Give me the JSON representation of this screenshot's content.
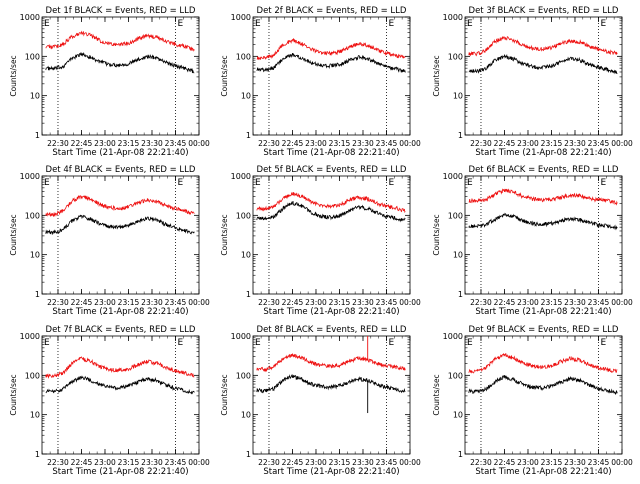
{
  "figure": {
    "description_kind": "3x3 grid of detector count-rate plots",
    "events_color": "#000000",
    "lld_color": "#ee1111",
    "frame_color": "#000000",
    "eclipse_marker": "E"
  },
  "chart_data": [
    {
      "type": "line",
      "title": "Det 1f BLACK = Events, RED = LLD",
      "ylabel": "Counts/sec",
      "xlabel": "Start Time (21-Apr-08 22:21:40)",
      "xlim": [
        22.33,
        24.0
      ],
      "ylim": [
        1,
        1000
      ],
      "yscale": "log",
      "xticks": [
        "22:30",
        "22:45",
        "23:00",
        "23:15",
        "23:30",
        "23:45",
        "00:00"
      ],
      "yticks": [
        "1",
        "10",
        "100",
        "1000"
      ],
      "vlines": [
        22.5,
        23.75
      ],
      "series": [
        {
          "name": "Events",
          "color": "#000000",
          "x": [
            22.37,
            22.45,
            22.55,
            22.65,
            22.75,
            22.85,
            22.95,
            23.05,
            23.15,
            23.25,
            23.35,
            23.45,
            23.55,
            23.65,
            23.75,
            23.85,
            23.95
          ],
          "values": [
            50,
            48,
            55,
            90,
            115,
            95,
            72,
            62,
            60,
            65,
            82,
            100,
            92,
            70,
            58,
            50,
            40
          ]
        },
        {
          "name": "LLD",
          "color": "#ee1111",
          "x": [
            22.37,
            22.45,
            22.55,
            22.65,
            22.75,
            22.85,
            22.95,
            23.05,
            23.15,
            23.25,
            23.35,
            23.45,
            23.55,
            23.65,
            23.75,
            23.85,
            23.95
          ],
          "values": [
            180,
            175,
            200,
            320,
            400,
            340,
            250,
            210,
            200,
            215,
            280,
            340,
            310,
            240,
            200,
            180,
            140
          ]
        }
      ]
    },
    {
      "type": "line",
      "title": "Det 2f BLACK = Events, RED = LLD",
      "ylabel": "Counts/sec",
      "xlabel": "Start Time (21-Apr-08 22:21:40)",
      "xlim": [
        22.33,
        24.0
      ],
      "ylim": [
        1,
        1000
      ],
      "yscale": "log",
      "xticks": [
        "22:30",
        "22:45",
        "23:00",
        "23:15",
        "23:30",
        "23:45",
        "00:00"
      ],
      "yticks": [
        "1",
        "10",
        "100",
        "1000"
      ],
      "vlines": [
        22.5,
        23.75
      ],
      "series": [
        {
          "name": "Events",
          "color": "#000000",
          "x": [
            22.37,
            22.45,
            22.55,
            22.65,
            22.75,
            22.85,
            22.95,
            23.05,
            23.15,
            23.25,
            23.35,
            23.45,
            23.55,
            23.65,
            23.75,
            23.85,
            23.95
          ],
          "values": [
            48,
            45,
            52,
            85,
            110,
            92,
            70,
            60,
            58,
            62,
            78,
            95,
            88,
            68,
            55,
            48,
            42
          ]
        },
        {
          "name": "LLD",
          "color": "#ee1111",
          "x": [
            22.37,
            22.45,
            22.55,
            22.65,
            22.75,
            22.85,
            22.95,
            23.05,
            23.15,
            23.25,
            23.35,
            23.45,
            23.55,
            23.65,
            23.75,
            23.85,
            23.95
          ],
          "values": [
            95,
            90,
            110,
            200,
            260,
            210,
            150,
            125,
            120,
            130,
            170,
            210,
            190,
            145,
            120,
            105,
            90
          ]
        }
      ]
    },
    {
      "type": "line",
      "title": "Det 3f BLACK = Events, RED = LLD",
      "ylabel": "Counts/sec",
      "xlabel": "Start Time (21-Apr-08 22:21:40)",
      "xlim": [
        22.33,
        24.0
      ],
      "ylim": [
        1,
        1000
      ],
      "yscale": "log",
      "xticks": [
        "22:30",
        "22:45",
        "23:00",
        "23:15",
        "23:30",
        "23:45",
        "00:00"
      ],
      "yticks": [
        "1",
        "10",
        "100",
        "1000"
      ],
      "vlines": [
        22.5,
        23.75
      ],
      "series": [
        {
          "name": "Events",
          "color": "#000000",
          "x": [
            22.37,
            22.45,
            22.55,
            22.65,
            22.75,
            22.85,
            22.95,
            23.05,
            23.15,
            23.25,
            23.35,
            23.45,
            23.55,
            23.65,
            23.75,
            23.85,
            23.95
          ],
          "values": [
            45,
            42,
            48,
            80,
            100,
            85,
            65,
            55,
            52,
            58,
            72,
            88,
            80,
            62,
            52,
            46,
            40
          ]
        },
        {
          "name": "LLD",
          "color": "#ee1111",
          "x": [
            22.37,
            22.45,
            22.55,
            22.65,
            22.75,
            22.85,
            22.95,
            23.05,
            23.15,
            23.25,
            23.35,
            23.45,
            23.55,
            23.65,
            23.75,
            23.85,
            23.95
          ],
          "values": [
            120,
            115,
            140,
            240,
            300,
            255,
            190,
            160,
            155,
            165,
            210,
            250,
            230,
            180,
            150,
            130,
            120
          ]
        }
      ]
    },
    {
      "type": "line",
      "title": "Det 4f BLACK = Events, RED = LLD",
      "ylabel": "Counts/sec",
      "xlabel": "Start Time (21-Apr-08 22:21:40)",
      "xlim": [
        22.33,
        24.0
      ],
      "ylim": [
        1,
        1000
      ],
      "yscale": "log",
      "xticks": [
        "22:30",
        "22:45",
        "23:00",
        "23:15",
        "23:30",
        "23:45",
        "00:00"
      ],
      "yticks": [
        "1",
        "10",
        "100",
        "1000"
      ],
      "vlines": [
        22.5,
        23.75
      ],
      "series": [
        {
          "name": "Events",
          "color": "#000000",
          "x": [
            22.37,
            22.45,
            22.55,
            22.65,
            22.75,
            22.85,
            22.95,
            23.05,
            23.15,
            23.25,
            23.35,
            23.45,
            23.55,
            23.65,
            23.75,
            23.85,
            23.95
          ],
          "values": [
            38,
            36,
            42,
            72,
            95,
            80,
            60,
            52,
            50,
            55,
            70,
            85,
            78,
            58,
            48,
            42,
            35
          ]
        },
        {
          "name": "LLD",
          "color": "#ee1111",
          "x": [
            22.37,
            22.45,
            22.55,
            22.65,
            22.75,
            22.85,
            22.95,
            23.05,
            23.15,
            23.25,
            23.35,
            23.45,
            23.55,
            23.65,
            23.75,
            23.85,
            23.95
          ],
          "values": [
            110,
            105,
            130,
            230,
            310,
            260,
            190,
            160,
            150,
            165,
            210,
            250,
            230,
            175,
            150,
            130,
            110
          ]
        }
      ]
    },
    {
      "type": "line",
      "title": "Det 5f BLACK = Events, RED = LLD",
      "ylabel": "Counts/sec",
      "xlabel": "Start Time (21-Apr-08 22:21:40)",
      "xlim": [
        22.33,
        24.0
      ],
      "ylim": [
        1,
        1000
      ],
      "yscale": "log",
      "xticks": [
        "22:30",
        "22:45",
        "23:00",
        "23:15",
        "23:30",
        "23:45",
        "00:00"
      ],
      "yticks": [
        "1",
        "10",
        "100",
        "1000"
      ],
      "vlines": [
        22.5,
        23.75
      ],
      "series": [
        {
          "name": "Events",
          "color": "#000000",
          "x": [
            22.37,
            22.45,
            22.55,
            22.65,
            22.75,
            22.85,
            22.95,
            23.05,
            23.15,
            23.25,
            23.35,
            23.45,
            23.55,
            23.65,
            23.75,
            23.85,
            23.95
          ],
          "values": [
            85,
            82,
            90,
            150,
            210,
            175,
            120,
            95,
            90,
            98,
            130,
            165,
            150,
            115,
            95,
            85,
            75
          ]
        },
        {
          "name": "LLD",
          "color": "#ee1111",
          "x": [
            22.37,
            22.45,
            22.55,
            22.65,
            22.75,
            22.85,
            22.95,
            23.05,
            23.15,
            23.25,
            23.35,
            23.45,
            23.55,
            23.65,
            23.75,
            23.85,
            23.95
          ],
          "values": [
            150,
            145,
            165,
            270,
            360,
            300,
            220,
            180,
            170,
            180,
            240,
            290,
            265,
            205,
            170,
            155,
            130
          ]
        }
      ]
    },
    {
      "type": "line",
      "title": "Det 6f BLACK = Events, RED = LLD",
      "ylabel": "Counts/sec",
      "xlabel": "Start Time (21-Apr-08 22:21:40)",
      "xlim": [
        22.33,
        24.0
      ],
      "ylim": [
        1,
        1000
      ],
      "yscale": "log",
      "xticks": [
        "22:30",
        "22:45",
        "23:00",
        "23:15",
        "23:30",
        "23:45",
        "00:00"
      ],
      "yticks": [
        "1",
        "10",
        "100",
        "1000"
      ],
      "vlines": [
        22.5,
        23.75
      ],
      "series": [
        {
          "name": "Events",
          "color": "#000000",
          "x": [
            22.37,
            22.45,
            22.55,
            22.65,
            22.75,
            22.85,
            22.95,
            23.05,
            23.15,
            23.25,
            23.35,
            23.45,
            23.55,
            23.65,
            23.75,
            23.85,
            23.95
          ],
          "values": [
            55,
            52,
            58,
            80,
            105,
            92,
            72,
            62,
            60,
            62,
            72,
            82,
            78,
            66,
            58,
            54,
            48
          ]
        },
        {
          "name": "LLD",
          "color": "#ee1111",
          "x": [
            22.37,
            22.45,
            22.55,
            22.65,
            22.75,
            22.85,
            22.95,
            23.05,
            23.15,
            23.25,
            23.35,
            23.45,
            23.55,
            23.65,
            23.75,
            23.85,
            23.95
          ],
          "values": [
            240,
            235,
            250,
            340,
            440,
            390,
            300,
            260,
            250,
            258,
            290,
            330,
            315,
            270,
            245,
            235,
            210
          ]
        }
      ]
    },
    {
      "type": "line",
      "title": "Det 7f BLACK = Events, RED = LLD",
      "ylabel": "Counts/sec",
      "xlabel": "Start Time (21-Apr-08 22:21:40)",
      "xlim": [
        22.33,
        24.0
      ],
      "ylim": [
        1,
        1000
      ],
      "yscale": "log",
      "xticks": [
        "22:30",
        "22:45",
        "23:00",
        "23:15",
        "23:30",
        "23:45",
        "00:00"
      ],
      "yticks": [
        "1",
        "10",
        "100",
        "1000"
      ],
      "vlines": [
        22.5,
        23.75
      ],
      "series": [
        {
          "name": "Events",
          "color": "#000000",
          "x": [
            22.37,
            22.45,
            22.55,
            22.65,
            22.75,
            22.85,
            22.95,
            23.05,
            23.15,
            23.25,
            23.35,
            23.45,
            23.55,
            23.65,
            23.75,
            23.85,
            23.95
          ],
          "values": [
            40,
            38,
            44,
            70,
            90,
            75,
            58,
            50,
            48,
            53,
            67,
            82,
            74,
            57,
            47,
            41,
            36
          ]
        },
        {
          "name": "LLD",
          "color": "#ee1111",
          "x": [
            22.37,
            22.45,
            22.55,
            22.65,
            22.75,
            22.85,
            22.95,
            23.05,
            23.15,
            23.25,
            23.35,
            23.45,
            23.55,
            23.65,
            23.75,
            23.85,
            23.95
          ],
          "values": [
            100,
            95,
            115,
            200,
            270,
            225,
            165,
            140,
            135,
            145,
            185,
            225,
            205,
            158,
            132,
            115,
            100
          ]
        }
      ]
    },
    {
      "type": "line",
      "title": "Det 8f BLACK = Events, RED = LLD",
      "ylabel": "Counts/sec",
      "xlabel": "Start Time (21-Apr-08 22:21:40)",
      "xlim": [
        22.33,
        24.0
      ],
      "ylim": [
        1,
        1000
      ],
      "yscale": "log",
      "xticks": [
        "22:30",
        "22:45",
        "23:00",
        "23:15",
        "23:30",
        "23:45",
        "00:00"
      ],
      "yticks": [
        "1",
        "10",
        "100",
        "1000"
      ],
      "vlines": [
        22.5,
        23.75
      ],
      "spike": {
        "x": 23.55,
        "lld_max": 1000,
        "events_min": 11
      },
      "series": [
        {
          "name": "Events",
          "color": "#000000",
          "x": [
            22.37,
            22.45,
            22.55,
            22.65,
            22.75,
            22.85,
            22.95,
            23.05,
            23.15,
            23.25,
            23.35,
            23.45,
            23.55,
            23.65,
            23.75,
            23.85,
            23.95
          ],
          "values": [
            42,
            40,
            46,
            75,
            95,
            80,
            60,
            52,
            50,
            55,
            68,
            82,
            75,
            58,
            50,
            44,
            40
          ]
        },
        {
          "name": "LLD",
          "color": "#ee1111",
          "x": [
            22.37,
            22.45,
            22.55,
            22.65,
            22.75,
            22.85,
            22.95,
            23.05,
            23.15,
            23.25,
            23.35,
            23.45,
            23.55,
            23.65,
            23.75,
            23.85,
            23.95
          ],
          "values": [
            150,
            140,
            165,
            260,
            330,
            280,
            210,
            180,
            170,
            180,
            230,
            275,
            250,
            200,
            175,
            160,
            150
          ]
        }
      ]
    },
    {
      "type": "line",
      "title": "Det 9f BLACK = Events, RED = LLD",
      "ylabel": "Counts/sec",
      "xlabel": "Start Time (21-Apr-08 22:21:40)",
      "xlim": [
        22.33,
        24.0
      ],
      "ylim": [
        1,
        1000
      ],
      "yscale": "log",
      "xticks": [
        "22:30",
        "22:45",
        "23:00",
        "23:15",
        "23:30",
        "23:45",
        "00:00"
      ],
      "yticks": [
        "1",
        "10",
        "100",
        "1000"
      ],
      "vlines": [
        22.5,
        23.75
      ],
      "series": [
        {
          "name": "Events",
          "color": "#000000",
          "x": [
            22.37,
            22.45,
            22.55,
            22.65,
            22.75,
            22.85,
            22.95,
            23.05,
            23.15,
            23.25,
            23.35,
            23.45,
            23.55,
            23.65,
            23.75,
            23.85,
            23.95
          ],
          "values": [
            40,
            38,
            44,
            70,
            92,
            78,
            58,
            50,
            48,
            53,
            67,
            82,
            75,
            57,
            47,
            41,
            36
          ]
        },
        {
          "name": "LLD",
          "color": "#ee1111",
          "x": [
            22.37,
            22.45,
            22.55,
            22.65,
            22.75,
            22.85,
            22.95,
            23.05,
            23.15,
            23.25,
            23.35,
            23.45,
            23.55,
            23.65,
            23.75,
            23.85,
            23.95
          ],
          "values": [
            130,
            125,
            150,
            260,
            330,
            280,
            205,
            172,
            165,
            175,
            225,
            270,
            245,
            190,
            160,
            140,
            125
          ]
        }
      ]
    }
  ]
}
